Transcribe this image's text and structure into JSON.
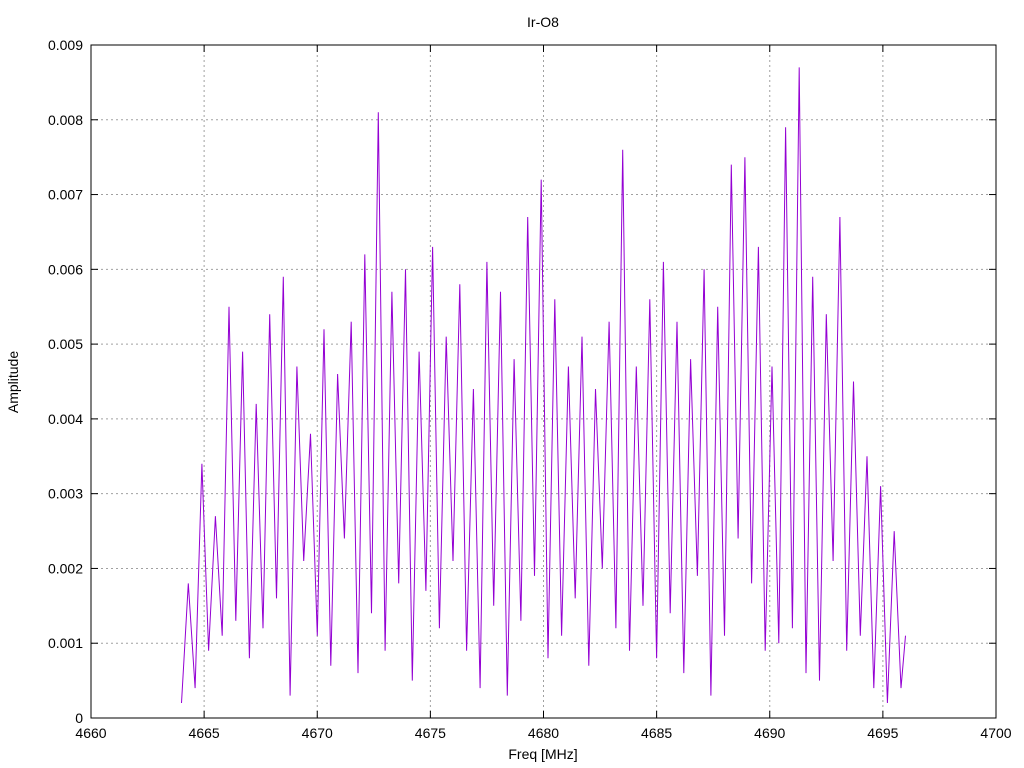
{
  "chart_data": {
    "type": "line",
    "title": "Ir-O8",
    "xlabel": "Freq [MHz]",
    "ylabel": "Amplitude",
    "xlim": [
      4660,
      4700
    ],
    "ylim": [
      0,
      0.009
    ],
    "x_ticks": [
      4660,
      4665,
      4670,
      4675,
      4680,
      4685,
      4690,
      4695,
      4700
    ],
    "y_ticks": [
      0,
      0.001,
      0.002,
      0.003,
      0.004,
      0.005,
      0.006,
      0.007,
      0.008,
      0.009
    ],
    "x_tick_labels": [
      "4660",
      "4665",
      "4670",
      "4675",
      "4680",
      "4685",
      "4690",
      "4695",
      "4700"
    ],
    "y_tick_labels": [
      "0",
      "0.001",
      "0.002",
      "0.003",
      "0.004",
      "0.005",
      "0.006",
      "0.007",
      "0.008",
      "0.009"
    ],
    "grid": true,
    "series_color": "#9400d3",
    "series": [
      {
        "x": [
          4664.0,
          4664.3,
          4664.6,
          4664.9,
          4665.2,
          4665.5,
          4665.8,
          4666.1,
          4666.4,
          4666.7,
          4667.0,
          4667.3,
          4667.6,
          4667.9,
          4668.2,
          4668.5,
          4668.8,
          4669.1,
          4669.4,
          4669.7,
          4670.0,
          4670.3,
          4670.6,
          4670.9,
          4671.2,
          4671.5,
          4671.8,
          4672.1,
          4672.4,
          4672.7,
          4673.0,
          4673.3,
          4673.6,
          4673.9,
          4674.2,
          4674.5,
          4674.8,
          4675.1,
          4675.4,
          4675.7,
          4676.0,
          4676.3,
          4676.6,
          4676.9,
          4677.2,
          4677.5,
          4677.8,
          4678.1,
          4678.4,
          4678.7,
          4679.0,
          4679.3,
          4679.6,
          4679.9,
          4680.2,
          4680.5,
          4680.8,
          4681.1,
          4681.4,
          4681.7,
          4682.0,
          4682.3,
          4682.6,
          4682.9,
          4683.2,
          4683.5,
          4683.8,
          4684.1,
          4684.4,
          4684.7,
          4685.0,
          4685.3,
          4685.6,
          4685.9,
          4686.2,
          4686.5,
          4686.8,
          4687.1,
          4687.4,
          4687.7,
          4688.0,
          4688.3,
          4688.6,
          4688.9,
          4689.2,
          4689.5,
          4689.8,
          4690.1,
          4690.4,
          4690.7,
          4691.0,
          4691.3,
          4691.6,
          4691.9,
          4692.2,
          4692.5,
          4692.8,
          4693.1,
          4693.4,
          4693.7,
          4694.0,
          4694.3,
          4694.6,
          4694.9,
          4695.2,
          4695.5,
          4695.8,
          4696.0
        ],
        "y": [
          0.0002,
          0.0018,
          0.0004,
          0.0034,
          0.0009,
          0.0027,
          0.0011,
          0.0055,
          0.0013,
          0.0049,
          0.0008,
          0.0042,
          0.0012,
          0.0054,
          0.0016,
          0.0059,
          0.0003,
          0.0047,
          0.0021,
          0.0038,
          0.0011,
          0.0052,
          0.0007,
          0.0046,
          0.0024,
          0.0053,
          0.0006,
          0.0062,
          0.0014,
          0.0081,
          0.0009,
          0.0057,
          0.0018,
          0.006,
          0.0005,
          0.0049,
          0.0017,
          0.0063,
          0.0012,
          0.0051,
          0.0021,
          0.0058,
          0.0009,
          0.0044,
          0.0004,
          0.0061,
          0.0015,
          0.0057,
          0.0003,
          0.0048,
          0.0013,
          0.0067,
          0.0019,
          0.0072,
          0.0008,
          0.0056,
          0.0011,
          0.0047,
          0.0016,
          0.0051,
          0.0007,
          0.0044,
          0.002,
          0.0053,
          0.0012,
          0.0076,
          0.0009,
          0.0047,
          0.0015,
          0.0056,
          0.0008,
          0.0061,
          0.0014,
          0.0053,
          0.0006,
          0.0048,
          0.0019,
          0.006,
          0.0003,
          0.0055,
          0.0011,
          0.0074,
          0.0024,
          0.0075,
          0.0018,
          0.0063,
          0.0009,
          0.0047,
          0.001,
          0.0079,
          0.0012,
          0.0087,
          0.0006,
          0.0059,
          0.0005,
          0.0054,
          0.0021,
          0.0067,
          0.0009,
          0.0045,
          0.0011,
          0.0035,
          0.0004,
          0.0031,
          0.0002,
          0.0025,
          0.0004,
          0.0011
        ]
      }
    ]
  }
}
